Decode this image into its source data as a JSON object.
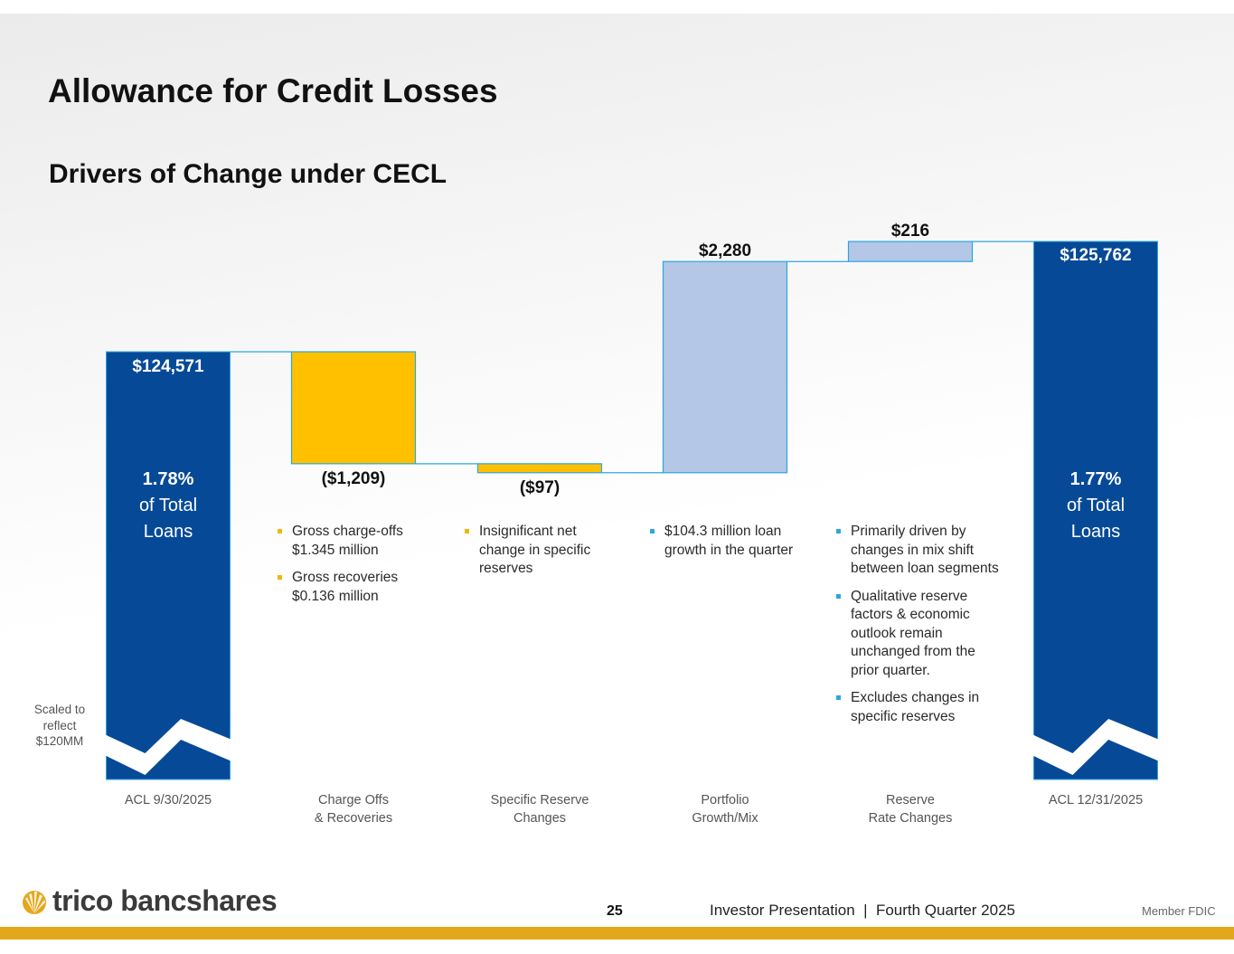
{
  "slide": {
    "title": "Allowance for Credit Losses",
    "subtitle": "Drivers of Change under CECL"
  },
  "chart_data": {
    "type": "waterfall",
    "title": "Drivers of Change under CECL",
    "units": "$ thousands",
    "categories": [
      "ACL 9/30/2025",
      "Charge Offs\n& Recoveries",
      "Specific Reserve\nChanges",
      "Portfolio\nGrowth/Mix",
      "Reserve\nRate Changes",
      "ACL 12/31/2025"
    ],
    "values": [
      124571,
      -1209,
      -97,
      2280,
      216,
      125762
    ],
    "kinds": [
      "total",
      "decrease",
      "decrease",
      "increase",
      "increase",
      "total"
    ],
    "data_labels": [
      "$124,571",
      "($1,209)",
      "($97)",
      "$2,280",
      "$216",
      "$125,762"
    ],
    "total_notes": [
      [
        "1.78%",
        "of Total",
        "Loans"
      ],
      null,
      null,
      null,
      null,
      [
        "1.77%",
        "of Total",
        "Loans"
      ]
    ],
    "axis_break_note": "Scaled to reflect $120MM",
    "colors": {
      "total": "#064a97",
      "decrease": "#ffc000",
      "increase": "#b4c7e7",
      "outline": "#2ca7df"
    }
  },
  "scaled_note": "Scaled to reflect $120MM",
  "bullets": {
    "charge_offs": [
      "Gross charge-offs $1.345 million",
      "Gross recoveries $0.136 million"
    ],
    "specific_reserve": [
      "Insignificant net change in specific reserves"
    ],
    "portfolio": [
      "$104.3 million loan growth in the quarter"
    ],
    "reserve_rate": [
      "Primarily driven by changes in mix shift between loan segments",
      "Qualitative reserve factors & economic outlook remain unchanged from the prior quarter.",
      "Excludes changes in specific reserves"
    ]
  },
  "footer": {
    "company": "trico bancshares",
    "page_number": "25",
    "presentation": "Investor Presentation  |  Fourth Quarter 2025",
    "member": "Member FDIC"
  },
  "logo_icon": "trico-sunburst-icon"
}
